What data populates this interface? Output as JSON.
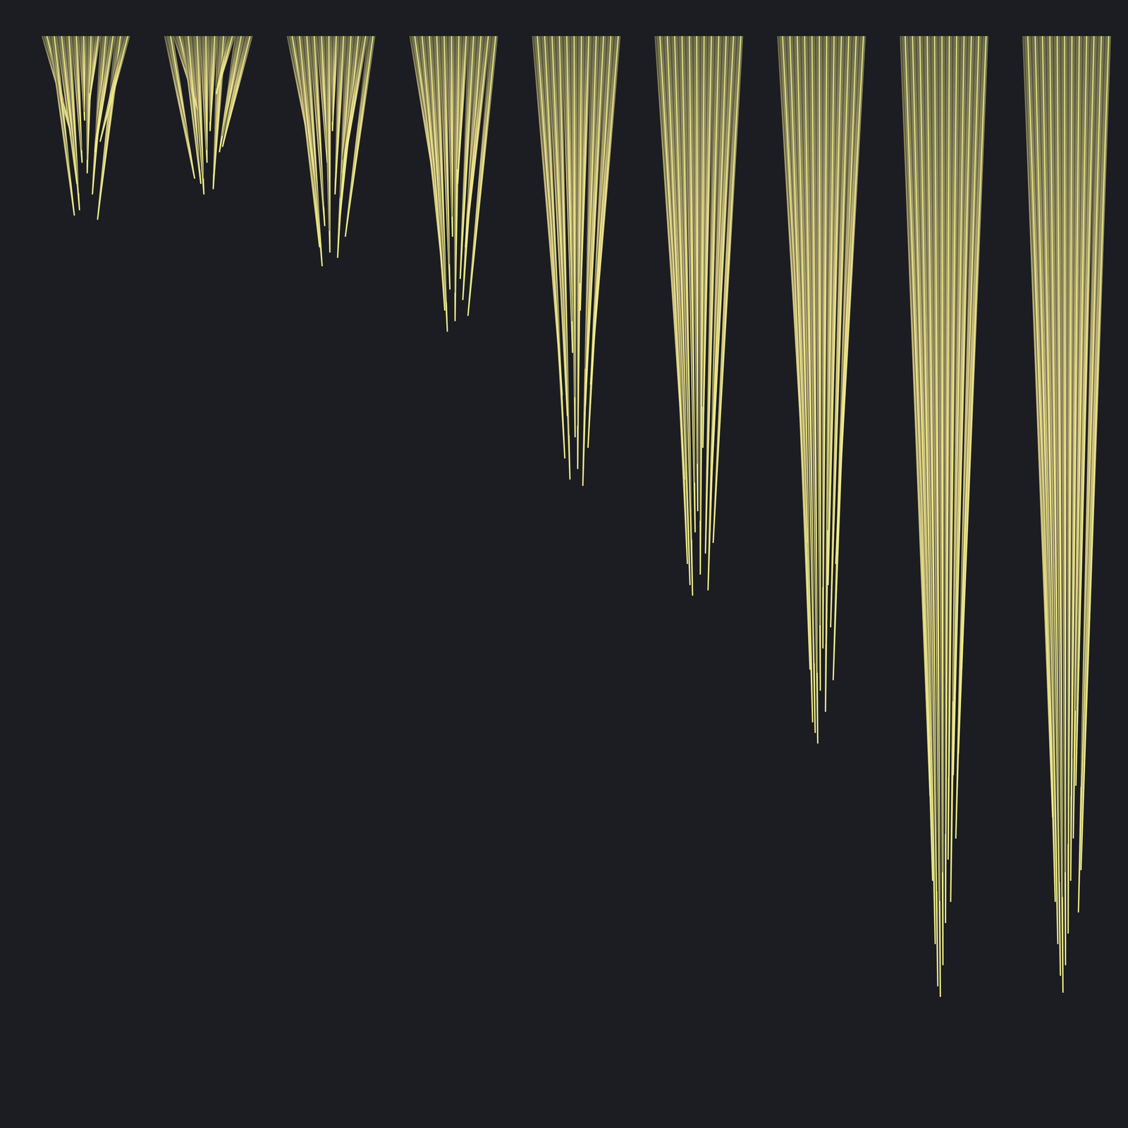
{
  "chart_data": {
    "type": "strands",
    "categories": [
      null,
      null,
      null,
      null,
      null,
      null,
      null,
      null,
      null
    ],
    "values": [
      [
        9.5,
        17,
        14,
        16.5,
        12,
        8,
        13,
        6,
        15,
        11,
        17.4,
        10
      ],
      [
        13.5,
        7,
        14,
        15,
        12,
        9,
        14.5,
        5.5,
        11,
        10.5
      ],
      [
        14,
        20,
        21.8,
        18,
        12,
        20.5,
        9,
        15,
        21,
        17,
        13,
        19
      ],
      [
        17,
        22,
        26,
        28,
        24,
        19,
        27,
        14,
        23,
        25,
        20,
        26.5
      ],
      [
        34,
        40,
        36,
        42,
        30,
        38,
        41,
        26,
        42.6,
        35,
        39,
        33
      ],
      [
        42,
        50,
        52,
        53,
        47,
        45,
        51,
        39,
        49,
        52.5,
        44,
        48
      ],
      [
        48,
        60,
        65,
        66,
        67,
        62,
        58,
        64,
        52,
        56,
        61,
        50
      ],
      [
        72,
        80,
        86,
        90,
        91,
        88,
        84,
        78,
        82,
        70,
        76,
        68
      ],
      [
        74,
        82,
        86,
        89,
        90.6,
        88,
        85,
        80,
        76,
        71,
        83,
        79
      ]
    ],
    "color": "#f0ee8a",
    "ylim": [
      0,
      100
    ],
    "tick_labels": false,
    "grid": false
  }
}
